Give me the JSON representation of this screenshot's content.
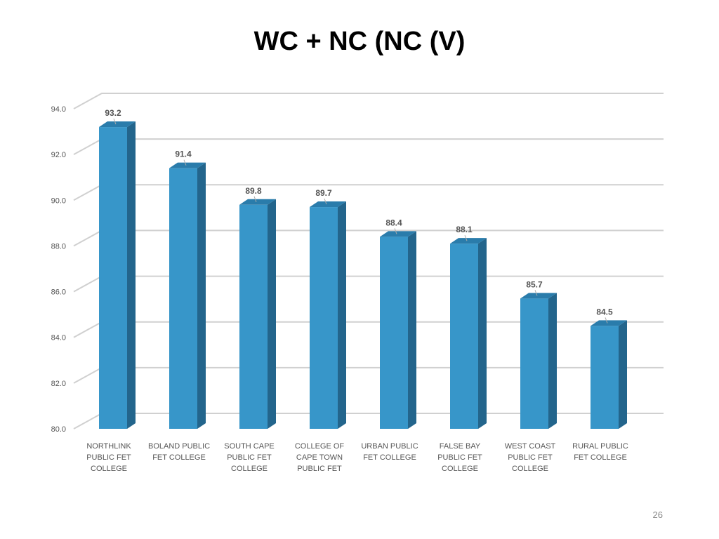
{
  "slide": {
    "title": "WC + NC (NC (V)",
    "page_number": "26"
  },
  "colors": {
    "bar_front": "#3796c9",
    "bar_side": "#23658c",
    "bar_top": "#2a7cab",
    "grid": "#d0d0d0",
    "text": "#555555"
  },
  "chart_data": {
    "type": "bar",
    "title": "",
    "xlabel": "",
    "ylabel": "",
    "ylim": [
      80,
      94
    ],
    "yticks": [
      "80.0",
      "82.0",
      "84.0",
      "86.0",
      "88.0",
      "90.0",
      "92.0",
      "94.0"
    ],
    "grid": true,
    "categories": [
      [
        "NORTHLINK",
        "PUBLIC FET",
        "COLLEGE"
      ],
      [
        "BOLAND PUBLIC",
        "FET COLLEGE"
      ],
      [
        "SOUTH CAPE",
        "PUBLIC FET",
        "COLLEGE"
      ],
      [
        "COLLEGE OF",
        "CAPE TOWN",
        "PUBLIC FET"
      ],
      [
        "URBAN PUBLIC",
        "FET COLLEGE"
      ],
      [
        "FALSE BAY",
        "PUBLIC FET",
        "COLLEGE"
      ],
      [
        "WEST COAST",
        "PUBLIC FET",
        "COLLEGE"
      ],
      [
        "RURAL PUBLIC",
        "FET COLLEGE"
      ]
    ],
    "values": [
      93.2,
      91.4,
      89.8,
      89.7,
      88.4,
      88.1,
      85.7,
      84.5
    ],
    "data_labels": [
      "93.2",
      "91.4",
      "89.8",
      "89.7",
      "88.4",
      "88.1",
      "85.7",
      "84.5"
    ]
  }
}
